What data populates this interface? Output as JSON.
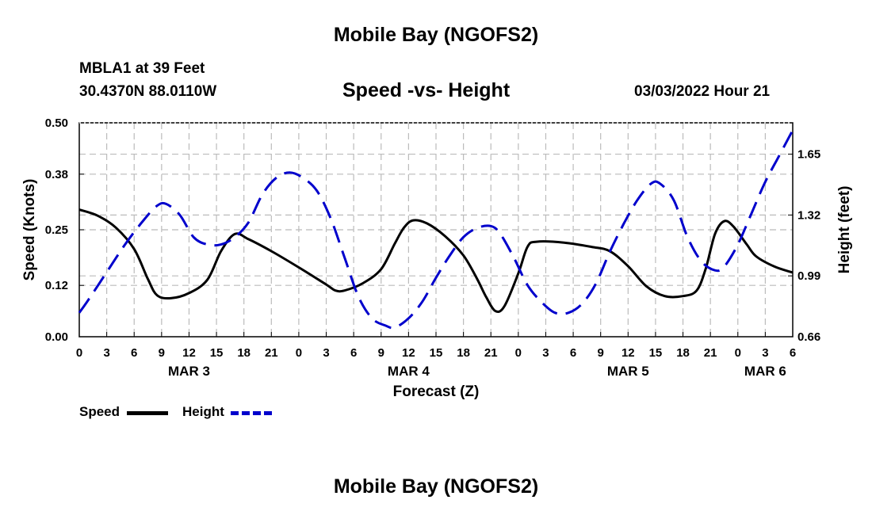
{
  "page": {
    "title": "Mobile Bay (NGOFS2)",
    "station_line": "MBLA1 at 39 Feet",
    "coords_line": "30.4370N  88.0110W",
    "subtitle": "Speed -vs- Height",
    "timestamp": "03/03/2022 Hour 21",
    "footer_title": "Mobile Bay (NGOFS2)"
  },
  "colors": {
    "speed": "#000000",
    "height": "#0000cc",
    "grid": "#bbbbbb"
  },
  "chart_data": {
    "type": "line",
    "title": "Speed -vs- Height",
    "xlabel": "Forecast (Z)",
    "ylabel_left": "Speed (Knots)",
    "ylabel_right": "Height (feet)",
    "x_unit": "hours since MAR 3 00Z",
    "xlim": [
      0,
      78
    ],
    "ylim_left": [
      0,
      0.5
    ],
    "ylim_right": [
      0.66,
      1.82
    ],
    "x_ticks": [
      0,
      3,
      6,
      9,
      12,
      15,
      18,
      21,
      24,
      27,
      30,
      33,
      36,
      39,
      42,
      45,
      48,
      51,
      54,
      57,
      60,
      63,
      66,
      69,
      72,
      75,
      78
    ],
    "x_tick_labels": [
      "0",
      "3",
      "6",
      "9",
      "12",
      "15",
      "18",
      "21",
      "0",
      "3",
      "6",
      "9",
      "12",
      "15",
      "18",
      "21",
      "0",
      "3",
      "6",
      "9",
      "12",
      "15",
      "18",
      "21",
      "0",
      "3",
      "6"
    ],
    "date_labels": [
      {
        "label": "MAR 3",
        "x": 12
      },
      {
        "label": "MAR 4",
        "x": 36
      },
      {
        "label": "MAR 5",
        "x": 60
      },
      {
        "label": "MAR 6",
        "x": 75
      }
    ],
    "y_left_ticks": [
      0.0,
      0.12,
      0.25,
      0.38,
      0.5
    ],
    "y_left_tick_labels": [
      "0.00",
      "0.12",
      "0.25",
      "0.38",
      "0.50"
    ],
    "y_right_ticks": [
      0.66,
      0.99,
      1.32,
      1.65
    ],
    "y_right_tick_labels": [
      "0.66",
      "0.99",
      "1.32",
      "1.65"
    ],
    "legend": [
      {
        "name": "Speed",
        "style": "solid"
      },
      {
        "name": "Height",
        "style": "dashed"
      }
    ],
    "series": [
      {
        "name": "Speed",
        "axis": "left",
        "style": "solid",
        "points": [
          [
            0,
            0.297
          ],
          [
            2,
            0.283
          ],
          [
            4,
            0.255
          ],
          [
            6,
            0.205
          ],
          [
            7.5,
            0.135
          ],
          [
            8.5,
            0.097
          ],
          [
            10,
            0.09
          ],
          [
            12,
            0.102
          ],
          [
            14,
            0.133
          ],
          [
            15.5,
            0.2
          ],
          [
            17,
            0.24
          ],
          [
            18.5,
            0.228
          ],
          [
            21,
            0.2
          ],
          [
            24,
            0.162
          ],
          [
            27,
            0.122
          ],
          [
            28,
            0.108
          ],
          [
            29,
            0.108
          ],
          [
            31,
            0.125
          ],
          [
            33,
            0.158
          ],
          [
            34.5,
            0.218
          ],
          [
            35.5,
            0.255
          ],
          [
            36.5,
            0.272
          ],
          [
            38,
            0.265
          ],
          [
            40,
            0.235
          ],
          [
            42,
            0.19
          ],
          [
            43.5,
            0.135
          ],
          [
            44.5,
            0.092
          ],
          [
            45.5,
            0.06
          ],
          [
            46.5,
            0.072
          ],
          [
            48,
            0.148
          ],
          [
            49,
            0.21
          ],
          [
            50,
            0.222
          ],
          [
            53,
            0.22
          ],
          [
            56,
            0.21
          ],
          [
            58,
            0.2
          ],
          [
            60,
            0.165
          ],
          [
            62,
            0.118
          ],
          [
            64,
            0.095
          ],
          [
            66,
            0.095
          ],
          [
            67.5,
            0.108
          ],
          [
            68.5,
            0.16
          ],
          [
            69.5,
            0.24
          ],
          [
            70.5,
            0.27
          ],
          [
            71.5,
            0.258
          ],
          [
            73,
            0.215
          ],
          [
            74,
            0.188
          ],
          [
            76,
            0.164
          ],
          [
            78,
            0.15
          ]
        ]
      },
      {
        "name": "Height",
        "axis": "right",
        "style": "dashed",
        "points": [
          [
            0,
            0.79
          ],
          [
            1,
            0.86
          ],
          [
            3,
            1.01
          ],
          [
            5,
            1.16
          ],
          [
            7,
            1.29
          ],
          [
            8.5,
            1.37
          ],
          [
            9.5,
            1.38
          ],
          [
            11,
            1.32
          ],
          [
            12.5,
            1.2
          ],
          [
            14,
            1.16
          ],
          [
            15.5,
            1.16
          ],
          [
            17,
            1.2
          ],
          [
            18.5,
            1.28
          ],
          [
            20,
            1.43
          ],
          [
            21.5,
            1.52
          ],
          [
            23,
            1.55
          ],
          [
            24.5,
            1.52
          ],
          [
            26,
            1.45
          ],
          [
            27.5,
            1.3
          ],
          [
            29,
            1.09
          ],
          [
            30.5,
            0.88
          ],
          [
            32,
            0.76
          ],
          [
            33.5,
            0.72
          ],
          [
            34.5,
            0.71
          ],
          [
            36,
            0.76
          ],
          [
            37.5,
            0.85
          ],
          [
            39,
            0.98
          ],
          [
            40.5,
            1.1
          ],
          [
            42,
            1.2
          ],
          [
            43.5,
            1.25
          ],
          [
            45,
            1.26
          ],
          [
            46,
            1.22
          ],
          [
            47.5,
            1.09
          ],
          [
            49,
            0.94
          ],
          [
            50.5,
            0.85
          ],
          [
            52,
            0.79
          ],
          [
            53.5,
            0.79
          ],
          [
            55,
            0.84
          ],
          [
            56.5,
            0.95
          ],
          [
            58,
            1.12
          ],
          [
            59.5,
            1.27
          ],
          [
            61,
            1.4
          ],
          [
            62.5,
            1.49
          ],
          [
            63.5,
            1.49
          ],
          [
            65,
            1.4
          ],
          [
            66.5,
            1.2
          ],
          [
            68,
            1.07
          ],
          [
            69.5,
            1.02
          ],
          [
            70.5,
            1.04
          ],
          [
            72,
            1.16
          ],
          [
            73.5,
            1.33
          ],
          [
            75,
            1.5
          ],
          [
            76.5,
            1.64
          ],
          [
            78,
            1.78
          ]
        ]
      }
    ]
  }
}
